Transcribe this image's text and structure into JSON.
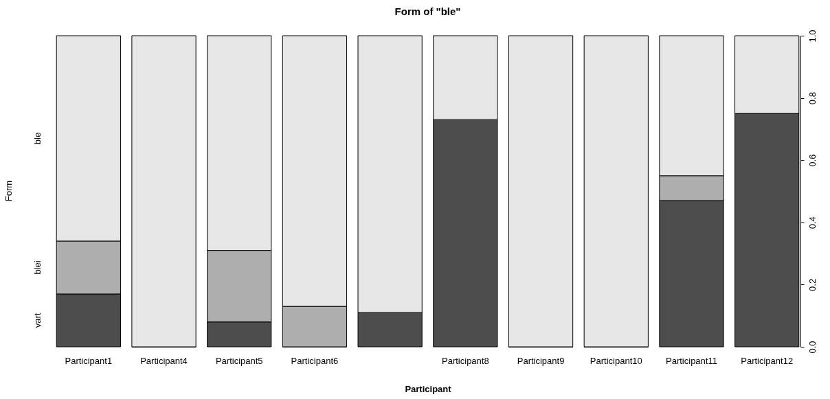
{
  "chart_data": {
    "type": "bar",
    "title": "Form of \"ble\"",
    "xlabel": "Participant",
    "ylabel": "Form",
    "stacked": true,
    "legend": false,
    "categories": [
      "Participant1",
      "Participant4",
      "Participant5",
      "Participant6",
      null,
      "Participant8",
      "Participant9",
      "Participant10",
      "Participant11",
      "Participant12"
    ],
    "series": [
      {
        "name": "vart",
        "color": "#4d4d4d",
        "values": [
          0.17,
          0,
          0.08,
          0,
          0.11,
          0.73,
          0,
          0,
          0.47,
          0.75
        ]
      },
      {
        "name": "blei",
        "color": "#aeaeae",
        "values": [
          0.17,
          0,
          0.23,
          0.13,
          0,
          0,
          0,
          0,
          0.08,
          0
        ]
      },
      {
        "name": "ble",
        "color": "#e6e6e6",
        "values": [
          0.66,
          1,
          0.69,
          0.87,
          0.89,
          0.27,
          1,
          1,
          0.45,
          0.25
        ]
      }
    ],
    "ylim": [
      0,
      1
    ],
    "yticks": [
      {
        "value": 0,
        "label": "0.0"
      },
      {
        "value": 0.2,
        "label": "0.2"
      },
      {
        "value": 0.4,
        "label": "0.4"
      },
      {
        "value": 0.6,
        "label": "0.6"
      },
      {
        "value": 0.8,
        "label": "0.8"
      },
      {
        "value": 1,
        "label": "1.0"
      }
    ]
  }
}
